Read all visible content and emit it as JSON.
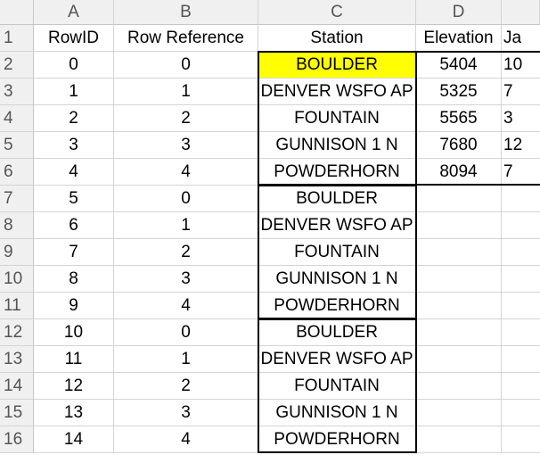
{
  "columns": [
    "A",
    "B",
    "C",
    "D"
  ],
  "rows": [
    "1",
    "2",
    "3",
    "4",
    "5",
    "6",
    "7",
    "8",
    "9",
    "10",
    "11",
    "12",
    "13",
    "14",
    "15",
    "16"
  ],
  "headers": {
    "row_id": "RowID",
    "row_reference": "Row Reference",
    "station": "Station",
    "elevation": "Elevation",
    "partial": "Ja"
  },
  "highlight_color": "#ffff00",
  "data": [
    {
      "row_id": "0",
      "row_ref": "0",
      "station": "BOULDER",
      "elevation": "5404",
      "partial": "10"
    },
    {
      "row_id": "1",
      "row_ref": "1",
      "station": "DENVER WSFO AP",
      "elevation": "5325",
      "partial": "7"
    },
    {
      "row_id": "2",
      "row_ref": "2",
      "station": "FOUNTAIN",
      "elevation": "5565",
      "partial": "3"
    },
    {
      "row_id": "3",
      "row_ref": "3",
      "station": "GUNNISON 1 N",
      "elevation": "7680",
      "partial": "12"
    },
    {
      "row_id": "4",
      "row_ref": "4",
      "station": "POWDERHORN",
      "elevation": "8094",
      "partial": "7"
    },
    {
      "row_id": "5",
      "row_ref": "0",
      "station": "BOULDER"
    },
    {
      "row_id": "6",
      "row_ref": "1",
      "station": "DENVER WSFO AP"
    },
    {
      "row_id": "7",
      "row_ref": "2",
      "station": "FOUNTAIN"
    },
    {
      "row_id": "8",
      "row_ref": "3",
      "station": "GUNNISON 1 N"
    },
    {
      "row_id": "9",
      "row_ref": "4",
      "station": "POWDERHORN"
    },
    {
      "row_id": "10",
      "row_ref": "0",
      "station": "BOULDER"
    },
    {
      "row_id": "11",
      "row_ref": "1",
      "station": "DENVER WSFO AP"
    },
    {
      "row_id": "12",
      "row_ref": "2",
      "station": "FOUNTAIN"
    },
    {
      "row_id": "13",
      "row_ref": "3",
      "station": "GUNNISON 1 N"
    },
    {
      "row_id": "14",
      "row_ref": "4",
      "station": "POWDERHORN"
    }
  ]
}
